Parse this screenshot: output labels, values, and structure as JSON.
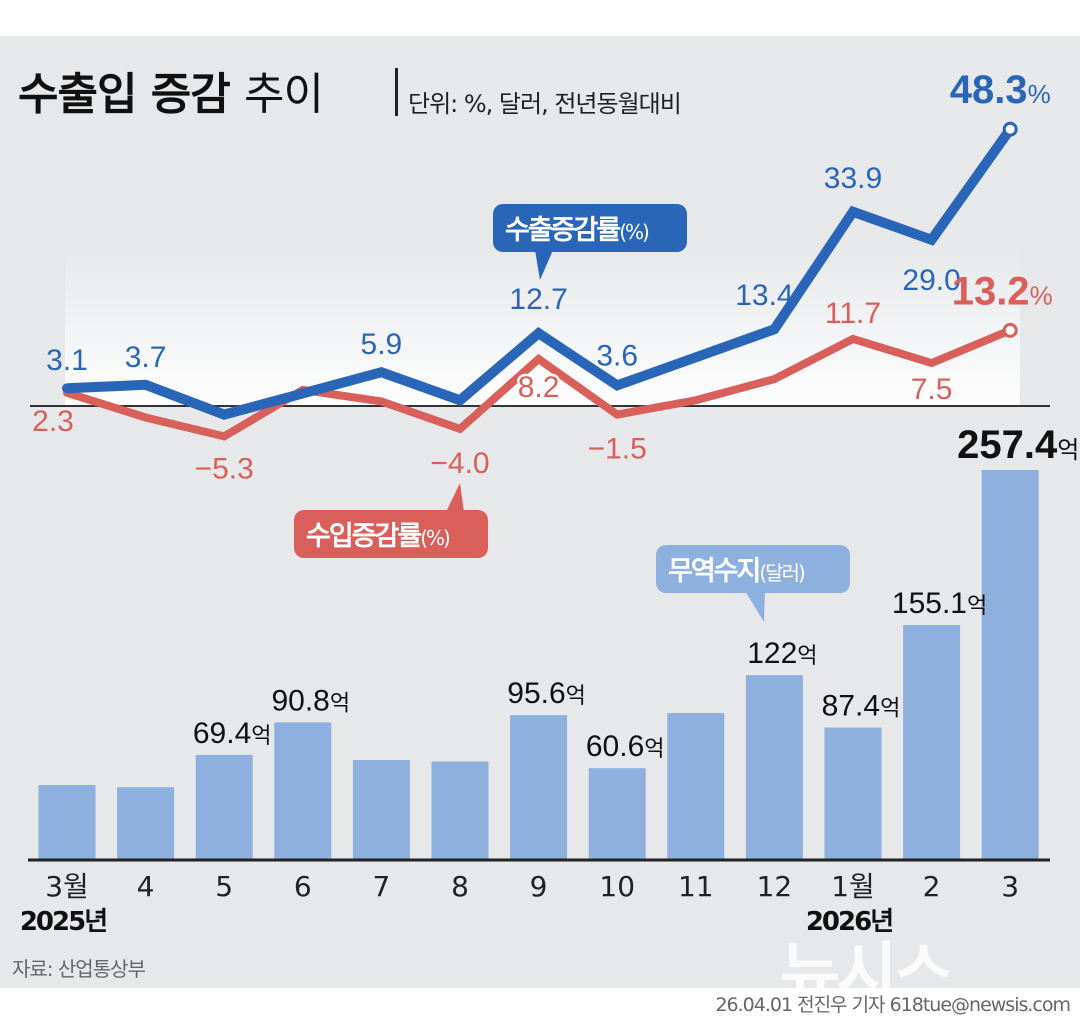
{
  "header": {
    "title_bold": "수출입 증감",
    "title_light": "추이",
    "unit": "단위: %, 달러, 전년동월대비"
  },
  "footer": {
    "source": "자료: 산업통상부",
    "credit": "26.04.01 전진우 기자 618tue@newsis.com",
    "watermark": "뉴시스"
  },
  "colors": {
    "export": "#2a66b8",
    "import": "#d9605a",
    "balance": "#8db0de",
    "background": "#e6e8ea"
  },
  "chart_data": [
    {
      "type": "line",
      "title": "수출입 증감 추이",
      "ylabel": "%",
      "categories": [
        "3월",
        "4",
        "5",
        "6",
        "7",
        "8",
        "9",
        "10",
        "11",
        "12",
        "1월",
        "2",
        "3"
      ],
      "year_labels": [
        {
          "index": 0,
          "label": "2025년"
        },
        {
          "index": 10,
          "label": "2026년"
        }
      ],
      "series": [
        {
          "name": "수출증감률(%)",
          "values": [
            3.1,
            3.7,
            -1.5,
            2.2,
            5.9,
            1.0,
            12.7,
            3.6,
            8.5,
            13.4,
            33.9,
            29.0,
            48.3
          ],
          "labels": [
            "3.1",
            "3.7",
            "",
            "",
            "5.9",
            "",
            "12.7",
            "3.6",
            "",
            "13.4",
            "33.9",
            "29.0",
            "48.3"
          ],
          "last_label_suffix": "%"
        },
        {
          "name": "수입증감률(%)",
          "values": [
            2.3,
            -2.0,
            -5.3,
            2.8,
            0.8,
            -4.0,
            8.2,
            -1.5,
            1.0,
            4.7,
            11.7,
            7.5,
            13.2
          ],
          "labels": [
            "2.3",
            "",
            "-5.3",
            "",
            "",
            "-4.0",
            "8.2",
            "-1.5",
            "",
            "",
            "11.7",
            "7.5",
            "13.2"
          ],
          "last_label_suffix": "%"
        }
      ],
      "zero_line": true
    },
    {
      "type": "bar",
      "series_name": "무역수지(달러)",
      "categories": [
        "3월",
        "4",
        "5",
        "6",
        "7",
        "8",
        "9",
        "10",
        "11",
        "12",
        "1월",
        "2",
        "3"
      ],
      "values": [
        49.5,
        48,
        69.4,
        90.8,
        66,
        65,
        95.6,
        60.6,
        97,
        122,
        87.4,
        155.1,
        257.4
      ],
      "labels": [
        "",
        "",
        "69.4",
        "90.8",
        "",
        "",
        "95.6",
        "60.6",
        "",
        "122",
        "87.4",
        "155.1",
        "257.4"
      ],
      "label_suffix": "억",
      "ylim": [
        0,
        260
      ]
    }
  ],
  "callouts": {
    "export": "수출증감률",
    "import": "수입증감률",
    "balance": "무역수지",
    "export_unit": "(%)",
    "import_unit": "(%)",
    "balance_unit": "(달러)"
  }
}
